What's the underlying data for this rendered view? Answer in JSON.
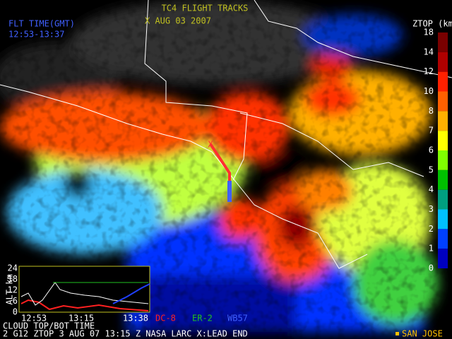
{
  "header": {
    "title": "TC4 FLIGHT TRACKS",
    "date": "X   AUG 03 2007",
    "flight_time_label": "FLT TIME(GMT)",
    "flight_time": "12:53-13:37"
  },
  "colorbar": {
    "title": "ZTOP (km)",
    "labels": [
      "18",
      "14",
      "12",
      "10",
      "8",
      "7",
      "6",
      "5",
      "4",
      "3",
      "2",
      "1",
      "0"
    ],
    "colors": [
      "#7a0000",
      "#b00000",
      "#ff2000",
      "#ff6000",
      "#ffb000",
      "#ffff00",
      "#80ff00",
      "#00c000",
      "#00a080",
      "#00c0ff",
      "#0040ff",
      "#0000c0"
    ]
  },
  "inset": {
    "axis_label": "ALT km",
    "yticks": [
      "24",
      "18",
      "12",
      "6",
      "0"
    ],
    "xticks": [
      "12:53",
      "13:15",
      "13:38"
    ],
    "caption": "CLOUD TOP/BOT TIME"
  },
  "legend": [
    {
      "name": "DC-8",
      "color": "#ff2020"
    },
    {
      "name": "ER-2",
      "color": "#20c020"
    },
    {
      "name": "WB57",
      "color": "#4060ff"
    }
  ],
  "footer": {
    "text": "2   G12 ZTOP   3 AUG 07  13:15 Z   NASA LARC   X:LEAD END",
    "location": "SAN JOSE"
  }
}
